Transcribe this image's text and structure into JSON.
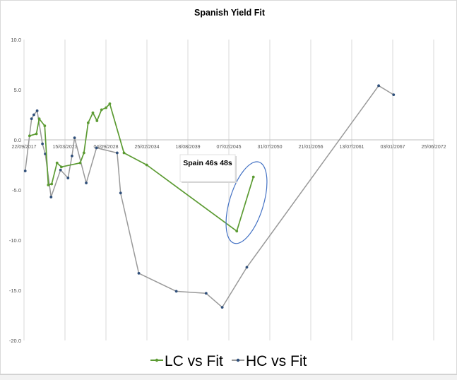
{
  "chart_data": {
    "type": "line",
    "title": "Spanish Yield Fit",
    "xlabel": "",
    "ylabel": "",
    "x_axis_type": "date",
    "x_tick_labels": [
      "22/09/2017",
      "15/03/2023",
      "04/09/2028",
      "25/02/2034",
      "18/08/2039",
      "07/02/2045",
      "31/07/2050",
      "21/01/2056",
      "13/07/2061",
      "03/01/2067",
      "25/06/2072"
    ],
    "y_ticks": [
      10.0,
      5.0,
      0.0,
      -5.0,
      -10.0,
      -15.0,
      -20.0
    ],
    "y_tick_labels": [
      "10.0",
      "5.0",
      "0.0",
      "-5.0",
      "-10.0",
      "-15.0",
      "-20.0"
    ],
    "ylim": [
      -20,
      10
    ],
    "xlim": [
      "2017-09-22",
      "2072-06-25"
    ],
    "grid": "vertical",
    "legend_position": "bottom",
    "series": [
      {
        "name": "LC vs Fit",
        "color": "#5c9b33",
        "marker": "circle",
        "points": [
          {
            "x": "2018-06-20",
            "y": 0.4
          },
          {
            "x": "2019-05-20",
            "y": 0.6
          },
          {
            "x": "2019-10-05",
            "y": 2.1
          },
          {
            "x": "2020-06-30",
            "y": 1.4
          },
          {
            "x": "2020-12-20",
            "y": -4.5
          },
          {
            "x": "2021-06-05",
            "y": -4.4
          },
          {
            "x": "2022-02-20",
            "y": -2.3
          },
          {
            "x": "2022-09-20",
            "y": -2.7
          },
          {
            "x": "2025-03-25",
            "y": -2.3
          },
          {
            "x": "2025-09-25",
            "y": -1.3
          },
          {
            "x": "2026-04-20",
            "y": 1.7
          },
          {
            "x": "2026-12-05",
            "y": 2.7
          },
          {
            "x": "2027-06-25",
            "y": 1.9
          },
          {
            "x": "2028-02-01",
            "y": 3.0
          },
          {
            "x": "2028-09-08",
            "y": 3.2
          },
          {
            "x": "2029-03-10",
            "y": 3.6
          },
          {
            "x": "2031-02-01",
            "y": -1.3
          },
          {
            "x": "2034-02-15",
            "y": -2.5
          },
          {
            "x": "2046-03-01",
            "y": -9.1
          },
          {
            "x": "2048-05-20",
            "y": -3.7
          }
        ]
      },
      {
        "name": "HC vs Fit",
        "color": "#999999",
        "marker": "circle",
        "points": [
          {
            "x": "2017-11-20",
            "y": -3.1
          },
          {
            "x": "2018-09-25",
            "y": 2.1
          },
          {
            "x": "2019-01-15",
            "y": 2.5
          },
          {
            "x": "2019-06-25",
            "y": 2.9
          },
          {
            "x": "2020-03-10",
            "y": -0.4
          },
          {
            "x": "2020-07-25",
            "y": -1.4
          },
          {
            "x": "2021-05-05",
            "y": -5.7
          },
          {
            "x": "2022-08-10",
            "y": -3.0
          },
          {
            "x": "2023-08-10",
            "y": -3.8
          },
          {
            "x": "2024-02-20",
            "y": -1.6
          },
          {
            "x": "2024-06-25",
            "y": 0.2
          },
          {
            "x": "2026-01-15",
            "y": -4.3
          },
          {
            "x": "2027-06-01",
            "y": -0.8
          },
          {
            "x": "2030-03-05",
            "y": -1.3
          },
          {
            "x": "2030-08-20",
            "y": -5.3
          },
          {
            "x": "2033-01-25",
            "y": -13.3
          },
          {
            "x": "2038-01-30",
            "y": -15.1
          },
          {
            "x": "2042-01-25",
            "y": -15.3
          },
          {
            "x": "2044-03-20",
            "y": -16.7
          },
          {
            "x": "2047-07-05",
            "y": -12.7
          },
          {
            "x": "2065-02-15",
            "y": 5.4
          },
          {
            "x": "2067-02-15",
            "y": 4.5
          }
        ]
      }
    ],
    "annotations": [
      {
        "text": "Spain 46s 48s",
        "type": "callout-box"
      }
    ],
    "highlight": {
      "shape": "ellipse",
      "color": "#4472c4",
      "target": "Spain 46s 48s points"
    }
  }
}
